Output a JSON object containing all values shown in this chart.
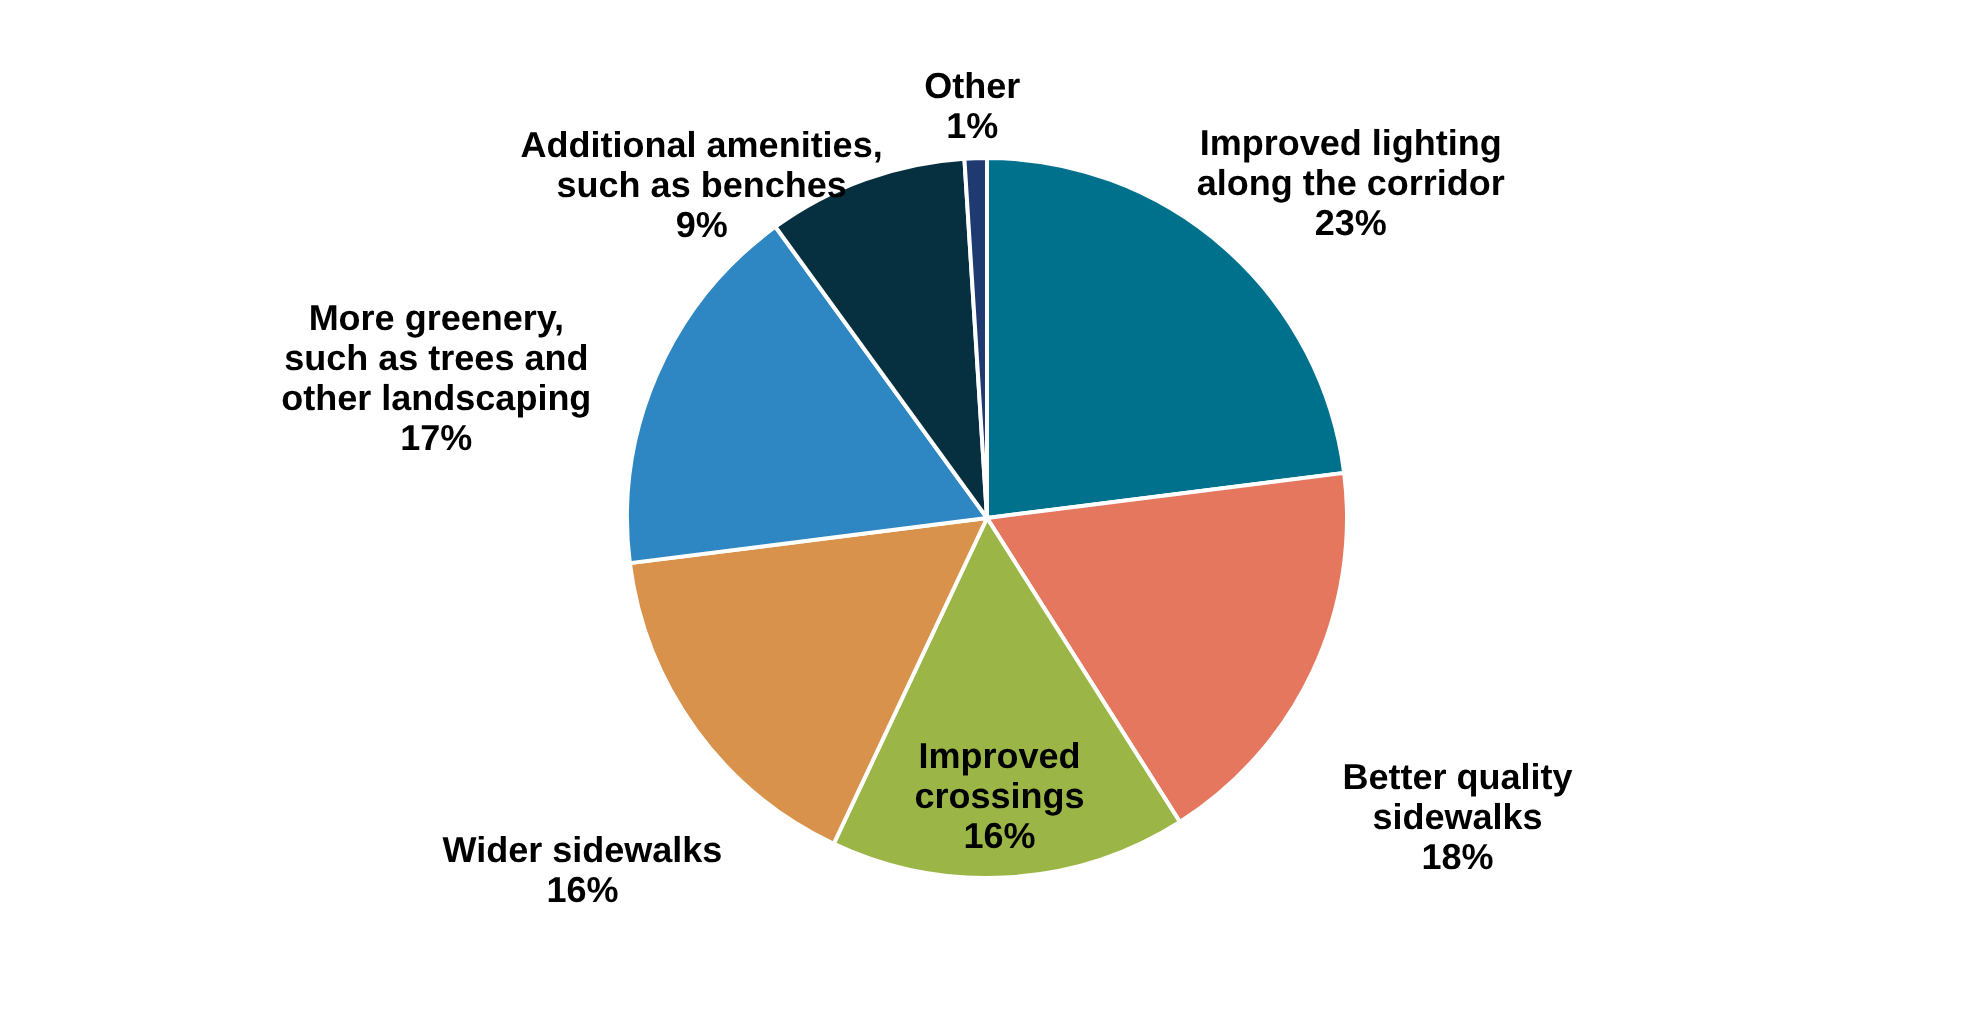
{
  "chart_data": {
    "type": "pie",
    "categories": [
      "Improved lighting\nalong the corridor",
      "Better quality\nsidewalks",
      "Improved\ncrossings",
      "Wider sidewalks",
      "More greenery,\nsuch as trees and\nother landscaping",
      "Additional amenities,\nsuch as benches",
      "Other"
    ],
    "values": [
      23,
      18,
      16,
      16,
      17,
      9,
      1
    ],
    "value_labels": [
      "23%",
      "18%",
      "16%",
      "16%",
      "17%",
      "9%",
      "1%"
    ],
    "colors": [
      "#00718c",
      "#e5775f",
      "#9bb646",
      "#d9924b",
      "#2e87c2",
      "#062f40",
      "#1f3a70"
    ]
  }
}
